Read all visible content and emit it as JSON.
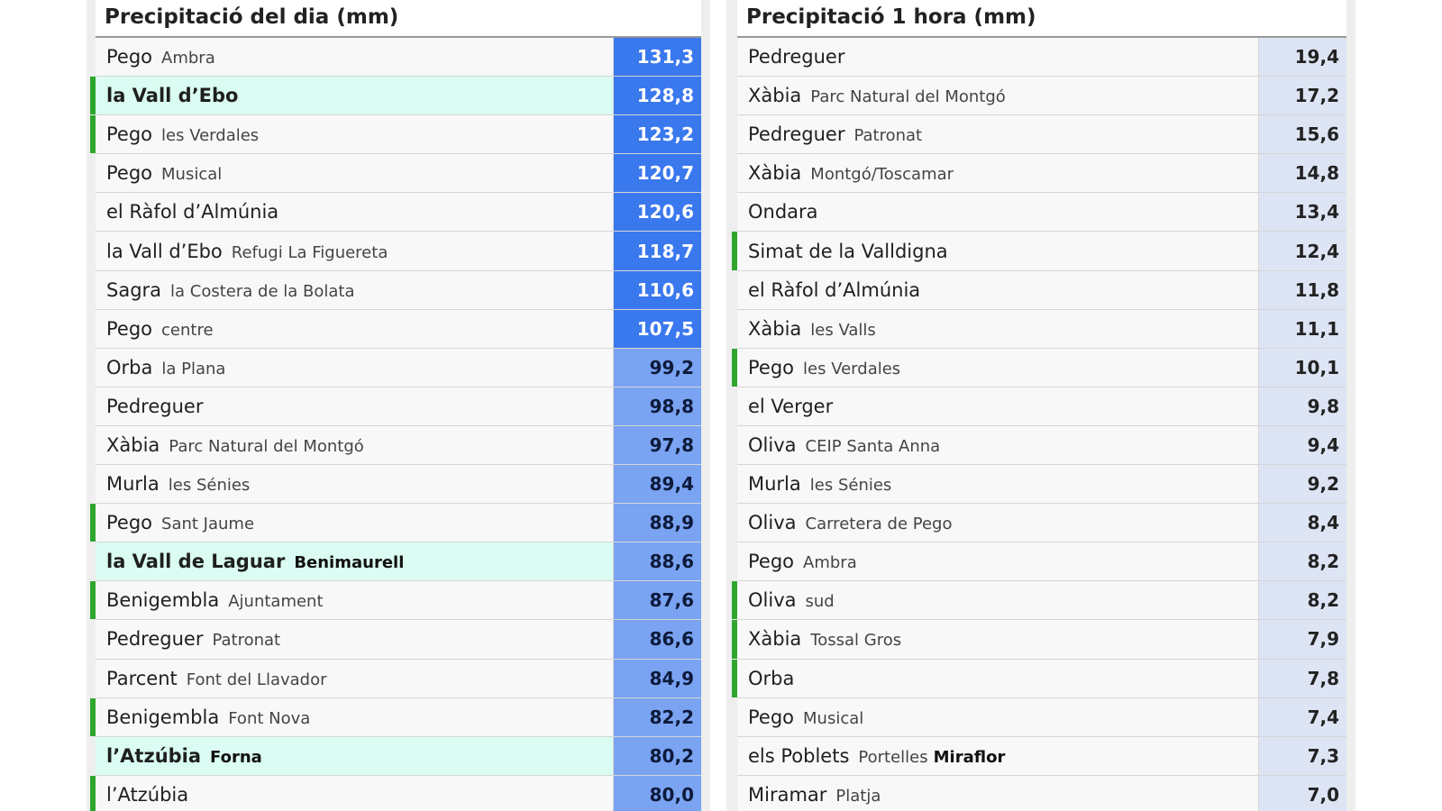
{
  "left_table": {
    "title": "Precipitació del dia (mm)",
    "rows": [
      {
        "place": "Pego",
        "sub": "Ambra",
        "value": "131,3",
        "highlight": false,
        "marker": false,
        "bg": "#3a78ee",
        "fg": "#ffffff"
      },
      {
        "place": "la Vall d’Ebo",
        "sub": "",
        "value": "128,8",
        "highlight": true,
        "marker": true,
        "bg": "#3a78ee",
        "fg": "#ffffff"
      },
      {
        "place": "Pego",
        "sub": "les Verdales",
        "value": "123,2",
        "highlight": false,
        "marker": true,
        "bg": "#3a78ee",
        "fg": "#ffffff"
      },
      {
        "place": "Pego",
        "sub": "Musical",
        "value": "120,7",
        "highlight": false,
        "marker": false,
        "bg": "#3a78ee",
        "fg": "#ffffff"
      },
      {
        "place": "el Ràfol d’Almúnia",
        "sub": "",
        "value": "120,6",
        "highlight": false,
        "marker": false,
        "bg": "#3a78ee",
        "fg": "#ffffff"
      },
      {
        "place": "la Vall d’Ebo",
        "sub": "Refugi La Figuereta",
        "value": "118,7",
        "highlight": false,
        "marker": false,
        "bg": "#3a78ee",
        "fg": "#ffffff"
      },
      {
        "place": "Sagra",
        "sub": "la Costera de la Bolata",
        "value": "110,6",
        "highlight": false,
        "marker": false,
        "bg": "#3a78ee",
        "fg": "#ffffff"
      },
      {
        "place": "Pego",
        "sub": "centre",
        "value": "107,5",
        "highlight": false,
        "marker": false,
        "bg": "#3a78ee",
        "fg": "#ffffff"
      },
      {
        "place": "Orba",
        "sub": "la Plana",
        "value": "99,2",
        "highlight": false,
        "marker": false,
        "bg": "#7aa3f2",
        "fg": "#0d1a3a"
      },
      {
        "place": "Pedreguer",
        "sub": "",
        "value": "98,8",
        "highlight": false,
        "marker": false,
        "bg": "#7aa3f2",
        "fg": "#0d1a3a"
      },
      {
        "place": "Xàbia",
        "sub": "Parc Natural del Montgó",
        "value": "97,8",
        "highlight": false,
        "marker": false,
        "bg": "#7aa3f2",
        "fg": "#0d1a3a"
      },
      {
        "place": "Murla",
        "sub": "les Sénies",
        "value": "89,4",
        "highlight": false,
        "marker": false,
        "bg": "#7aa3f2",
        "fg": "#0d1a3a"
      },
      {
        "place": "Pego",
        "sub": "Sant Jaume",
        "value": "88,9",
        "highlight": false,
        "marker": true,
        "bg": "#7aa3f2",
        "fg": "#0d1a3a"
      },
      {
        "place": "la Vall de Laguar",
        "sub": "Benimaurell",
        "value": "88,6",
        "highlight": true,
        "marker": false,
        "bg": "#7aa3f2",
        "fg": "#0d1a3a"
      },
      {
        "place": "Benigembla",
        "sub": "Ajuntament",
        "value": "87,6",
        "highlight": false,
        "marker": true,
        "bg": "#7aa3f2",
        "fg": "#0d1a3a"
      },
      {
        "place": "Pedreguer",
        "sub": "Patronat",
        "value": "86,6",
        "highlight": false,
        "marker": false,
        "bg": "#7aa3f2",
        "fg": "#0d1a3a"
      },
      {
        "place": "Parcent",
        "sub": "Font del Llavador",
        "value": "84,9",
        "highlight": false,
        "marker": false,
        "bg": "#7aa3f2",
        "fg": "#0d1a3a"
      },
      {
        "place": "Benigembla",
        "sub": "Font Nova",
        "value": "82,2",
        "highlight": false,
        "marker": true,
        "bg": "#7aa3f2",
        "fg": "#0d1a3a"
      },
      {
        "place": "l’Atzúbia",
        "sub": "Forna",
        "value": "80,2",
        "highlight": true,
        "marker": false,
        "bg": "#7aa3f2",
        "fg": "#0d1a3a"
      },
      {
        "place": "l’Atzúbia",
        "sub": "",
        "value": "80,0",
        "highlight": false,
        "marker": true,
        "bg": "#7aa3f2",
        "fg": "#0d1a3a"
      }
    ]
  },
  "right_table": {
    "title": "Precipitació 1 hora (mm)",
    "rows": [
      {
        "place": "Pedreguer",
        "sub": "",
        "sub2": "",
        "value": "19,4",
        "marker": false
      },
      {
        "place": "Xàbia",
        "sub": "Parc Natural del Montgó",
        "sub2": "",
        "value": "17,2",
        "marker": false
      },
      {
        "place": "Pedreguer",
        "sub": "Patronat",
        "sub2": "",
        "value": "15,6",
        "marker": false
      },
      {
        "place": "Xàbia",
        "sub": "Montgó/Toscamar",
        "sub2": "",
        "value": "14,8",
        "marker": false
      },
      {
        "place": "Ondara",
        "sub": "",
        "sub2": "",
        "value": "13,4",
        "marker": false
      },
      {
        "place": "Simat de la Valldigna",
        "sub": "",
        "sub2": "",
        "value": "12,4",
        "marker": true
      },
      {
        "place": "el Ràfol d’Almúnia",
        "sub": "",
        "sub2": "",
        "value": "11,8",
        "marker": false
      },
      {
        "place": "Xàbia",
        "sub": "les Valls",
        "sub2": "",
        "value": "11,1",
        "marker": false
      },
      {
        "place": "Pego",
        "sub": "les Verdales",
        "sub2": "",
        "value": "10,1",
        "marker": true
      },
      {
        "place": "el Verger",
        "sub": "",
        "sub2": "",
        "value": "9,8",
        "marker": false
      },
      {
        "place": "Oliva",
        "sub": "CEIP Santa Anna",
        "sub2": "",
        "value": "9,4",
        "marker": false
      },
      {
        "place": "Murla",
        "sub": "les Sénies",
        "sub2": "",
        "value": "9,2",
        "marker": false
      },
      {
        "place": "Oliva",
        "sub": "Carretera de Pego",
        "sub2": "",
        "value": "8,4",
        "marker": false
      },
      {
        "place": "Pego",
        "sub": "Ambra",
        "sub2": "",
        "value": "8,2",
        "marker": false
      },
      {
        "place": "Oliva",
        "sub": "sud",
        "sub2": "",
        "value": "8,2",
        "marker": true
      },
      {
        "place": "Xàbia",
        "sub": "Tossal Gros",
        "sub2": "",
        "value": "7,9",
        "marker": true
      },
      {
        "place": "Orba",
        "sub": "",
        "sub2": "",
        "value": "7,8",
        "marker": true
      },
      {
        "place": "Pego",
        "sub": "Musical",
        "sub2": "",
        "value": "7,4",
        "marker": false
      },
      {
        "place": "els Poblets",
        "sub": "Portelles",
        "sub2": "Miraflor",
        "value": "7,3",
        "marker": false
      },
      {
        "place": "Miramar",
        "sub": "Platja",
        "sub2": "",
        "value": "7,0",
        "marker": false
      }
    ]
  },
  "colors": {
    "marker_green": "#2ea62e",
    "highlight_row": "#dafcf2",
    "value_dark_blue": "#3a78ee",
    "value_light_blue": "#7aa3f2",
    "value_pale_blue": "#dde4f4"
  }
}
